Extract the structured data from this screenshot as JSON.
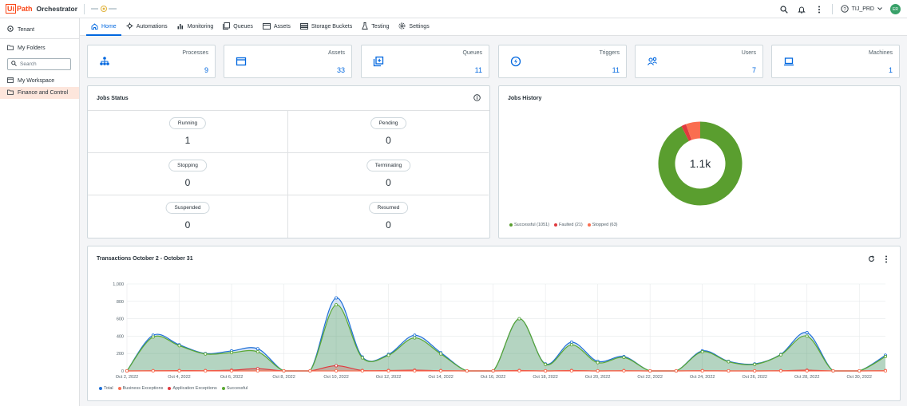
{
  "header": {
    "logo_box": "Ui",
    "logo_path": "Path",
    "app_name": "Orchestrator",
    "tenant_selector": "TIJ_PRD",
    "avatar_initials": "ER"
  },
  "sidebar": {
    "tenant": "Tenant",
    "my_folders": "My Folders",
    "search_placeholder": "Search",
    "items": [
      {
        "label": "My Workspace"
      },
      {
        "label": "Finance and Control"
      }
    ]
  },
  "tabs": [
    {
      "label": "Home"
    },
    {
      "label": "Automations"
    },
    {
      "label": "Monitoring"
    },
    {
      "label": "Queues"
    },
    {
      "label": "Assets"
    },
    {
      "label": "Storage Buckets"
    },
    {
      "label": "Testing"
    },
    {
      "label": "Settings"
    }
  ],
  "stats": [
    {
      "label": "Processes",
      "value": "9",
      "icon": "processes-icon"
    },
    {
      "label": "Assets",
      "value": "33",
      "icon": "assets-icon"
    },
    {
      "label": "Queues",
      "value": "11",
      "icon": "queues-icon"
    },
    {
      "label": "Triggers",
      "value": "11",
      "icon": "triggers-icon"
    },
    {
      "label": "Users",
      "value": "7",
      "icon": "users-icon"
    },
    {
      "label": "Machines",
      "value": "1",
      "icon": "machines-icon"
    }
  ],
  "jobs_status": {
    "title": "Jobs Status",
    "cells": [
      {
        "label": "Running",
        "value": "1"
      },
      {
        "label": "Pending",
        "value": "0"
      },
      {
        "label": "Stopping",
        "value": "0"
      },
      {
        "label": "Terminating",
        "value": "0"
      },
      {
        "label": "Suspended",
        "value": "0"
      },
      {
        "label": "Resumed",
        "value": "0"
      }
    ]
  },
  "jobs_history": {
    "title": "Jobs History",
    "center_label": "1.1k",
    "legend": [
      {
        "label": "Successful (1051)",
        "value": 1051,
        "color": "#5a9e2f"
      },
      {
        "label": "Faulted (21)",
        "value": 21,
        "color": "#e0393e"
      },
      {
        "label": "Stopped (63)",
        "value": 63,
        "color": "#fa6e50"
      }
    ]
  },
  "transactions": {
    "title": "Transactions October 2 - October 31",
    "legend": [
      {
        "label": "Total",
        "color": "#1f6fd6"
      },
      {
        "label": "Business Exceptions",
        "color": "#fa6e50"
      },
      {
        "label": "Application Exceptions",
        "color": "#e0393e"
      },
      {
        "label": "Successful",
        "color": "#5aa832"
      }
    ]
  },
  "chart_data": {
    "type": "area",
    "title": "Transactions October 2 - October 31",
    "ylim": [
      0,
      1000
    ],
    "y_ticks": [
      "0",
      "200",
      "400",
      "600",
      "800",
      "1,000"
    ],
    "x_tick_labels": [
      "Oct 2, 2022",
      "Oct 4, 2022",
      "Oct 6, 2022",
      "Oct 8, 2022",
      "Oct 10, 2022",
      "Oct 12, 2022",
      "Oct 14, 2022",
      "Oct 16, 2022",
      "Oct 18, 2022",
      "Oct 20, 2022",
      "Oct 22, 2022",
      "Oct 24, 2022",
      "Oct 26, 2022",
      "Oct 28, 2022",
      "Oct 30, 2022"
    ],
    "x": [
      "Oct 2",
      "Oct 3",
      "Oct 4",
      "Oct 5",
      "Oct 6",
      "Oct 7",
      "Oct 8",
      "Oct 9",
      "Oct 10",
      "Oct 11",
      "Oct 12",
      "Oct 13",
      "Oct 14",
      "Oct 15",
      "Oct 16",
      "Oct 17",
      "Oct 18",
      "Oct 19",
      "Oct 20",
      "Oct 21",
      "Oct 22",
      "Oct 23",
      "Oct 24",
      "Oct 25",
      "Oct 26",
      "Oct 27",
      "Oct 28",
      "Oct 29",
      "Oct 30",
      "Oct 31"
    ],
    "series": [
      {
        "name": "Total",
        "values": [
          0,
          410,
          300,
          200,
          230,
          255,
          0,
          0,
          840,
          160,
          190,
          410,
          210,
          0,
          0,
          600,
          80,
          330,
          110,
          165,
          0,
          0,
          230,
          110,
          80,
          190,
          440,
          0,
          0,
          180
        ]
      },
      {
        "name": "Business Exceptions",
        "values": [
          0,
          0,
          0,
          0,
          0,
          0,
          0,
          0,
          0,
          0,
          0,
          0,
          0,
          0,
          0,
          0,
          0,
          0,
          0,
          0,
          0,
          0,
          0,
          0,
          0,
          0,
          0,
          0,
          0,
          0
        ]
      },
      {
        "name": "Application Exceptions",
        "values": [
          0,
          2,
          4,
          3,
          8,
          25,
          0,
          0,
          60,
          5,
          5,
          8,
          3,
          0,
          0,
          5,
          0,
          5,
          0,
          3,
          0,
          0,
          2,
          0,
          0,
          2,
          8,
          0,
          0,
          3
        ]
      },
      {
        "name": "Successful",
        "values": [
          0,
          390,
          290,
          195,
          210,
          220,
          0,
          0,
          760,
          150,
          180,
          380,
          195,
          0,
          0,
          600,
          75,
          300,
          95,
          155,
          0,
          0,
          220,
          105,
          75,
          185,
          400,
          0,
          0,
          165
        ]
      }
    ]
  }
}
